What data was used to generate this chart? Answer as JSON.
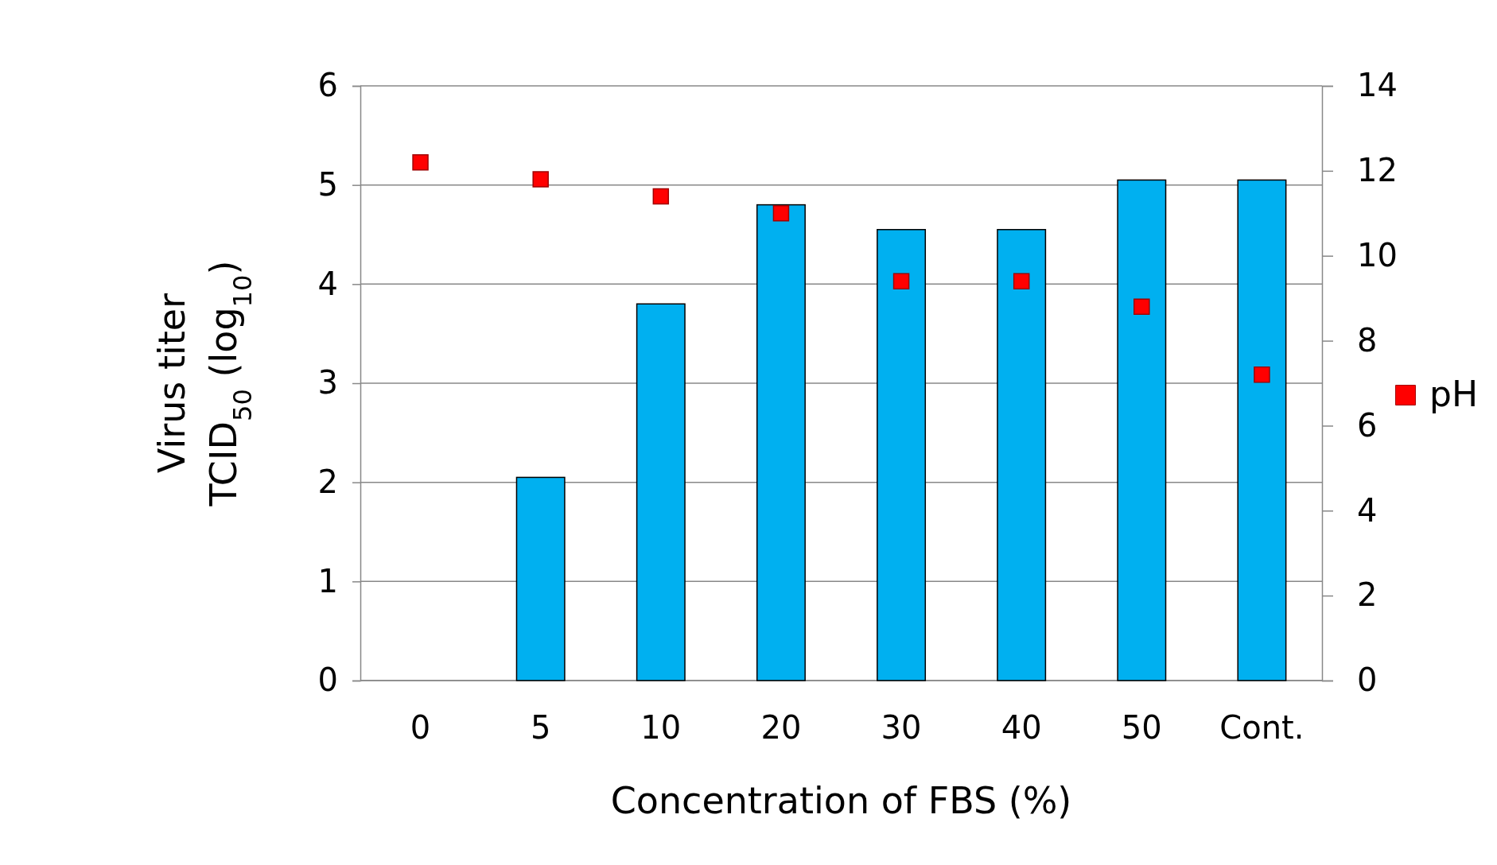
{
  "chart_data": {
    "type": "bar",
    "xlabel": "Concentration of FBS (%)",
    "ylabel": "Virus titer\nTCID$_{50}$ (log$_{10}$)",
    "categories": [
      "0",
      "5",
      "10",
      "20",
      "30",
      "40",
      "50",
      "Cont."
    ],
    "series": [
      {
        "color": "#00b0f0",
        "values": [
          0,
          2.05,
          3.8,
          4.8,
          4.55,
          4.55,
          5.05,
          5.05
        ]
      },
      {
        "type": "scatter",
        "name": "pH",
        "color": "#ff0000",
        "axis": "y2",
        "marker": "square",
        "x": [
          "0",
          "5",
          "10",
          "20",
          "30",
          "40",
          "50",
          "Cont."
        ],
        "values": [
          12.2,
          11.8,
          11.4,
          11.0,
          9.4,
          9.4,
          8.8,
          7.2
        ]
      }
    ],
    "ylim": [
      0,
      6
    ],
    "yticks": [
      0,
      1,
      2,
      3,
      4,
      5,
      6
    ],
    "y2lim": [
      0,
      14
    ],
    "y2ticks": [
      0,
      2,
      4,
      6,
      8,
      10,
      12,
      14
    ],
    "grid": "y",
    "legend": "right"
  }
}
